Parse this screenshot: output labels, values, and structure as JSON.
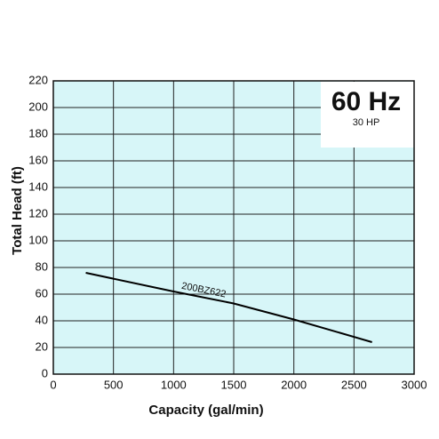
{
  "chart_data": {
    "type": "line",
    "annotation": "60 Hz",
    "subannotation": "30 HP",
    "x_label": "Capacity (gal/min)",
    "y_label": "Total Head (ft)",
    "series": [
      {
        "name": "200BZ622",
        "color": "#000000",
        "x": [
          270,
          1000,
          1500,
          2000,
          2650
        ],
        "values": [
          76,
          62,
          53,
          41,
          24
        ]
      }
    ],
    "xlim": [
      0,
      3000
    ],
    "xticks": [
      0,
      500,
      1000,
      1500,
      2000,
      2500,
      3000
    ],
    "ylim": [
      0,
      220
    ],
    "yticks": [
      0,
      20,
      40,
      60,
      80,
      100,
      120,
      140,
      160,
      180,
      200,
      220
    ],
    "grid": true,
    "background": "#d7f6f8"
  }
}
